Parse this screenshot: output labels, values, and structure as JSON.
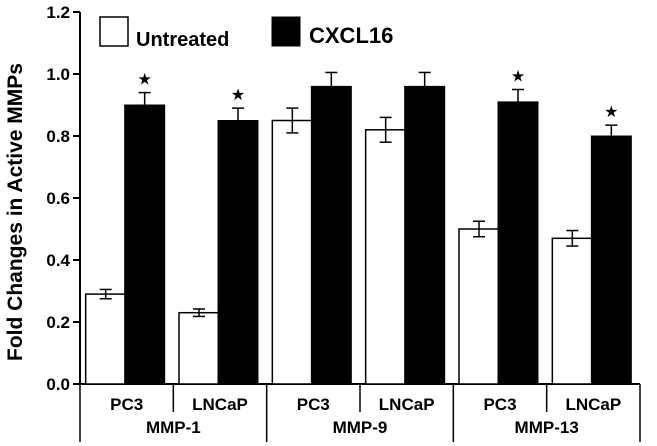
{
  "chart_data": {
    "type": "bar",
    "ylabel": "Fold Changes in Active MMPs",
    "ylim": [
      0,
      1.2
    ],
    "y_ticks": [
      "0.0",
      "0.2",
      "0.4",
      "0.6",
      "0.8",
      "1.0",
      "1.2"
    ],
    "groups": [
      {
        "name": "MMP-1",
        "categories": [
          "PC3",
          "LNCaP"
        ]
      },
      {
        "name": "MMP-9",
        "categories": [
          "PC3",
          "LNCaP"
        ]
      },
      {
        "name": "MMP-13",
        "categories": [
          "PC3",
          "LNCaP"
        ]
      }
    ],
    "categories": [
      "PC3",
      "LNCaP",
      "PC3",
      "LNCaP",
      "PC3",
      "LNCaP"
    ],
    "series": [
      {
        "name": "Untreated",
        "color": "#ffffff",
        "values": [
          0.29,
          0.23,
          0.85,
          0.82,
          0.5,
          0.47
        ],
        "errors": [
          0.015,
          0.012,
          0.04,
          0.04,
          0.025,
          0.025
        ]
      },
      {
        "name": "CXCL16",
        "color": "#000000",
        "values": [
          0.9,
          0.85,
          0.96,
          0.96,
          0.91,
          0.8
        ],
        "errors": [
          0.04,
          0.04,
          0.045,
          0.045,
          0.04,
          0.035
        ]
      }
    ],
    "significance": [
      "★",
      "★",
      "",
      "",
      "★",
      "★"
    ],
    "legend": {
      "placement": "top-left",
      "entries": [
        "Untreated",
        "CXCL16"
      ]
    },
    "grid": false
  }
}
